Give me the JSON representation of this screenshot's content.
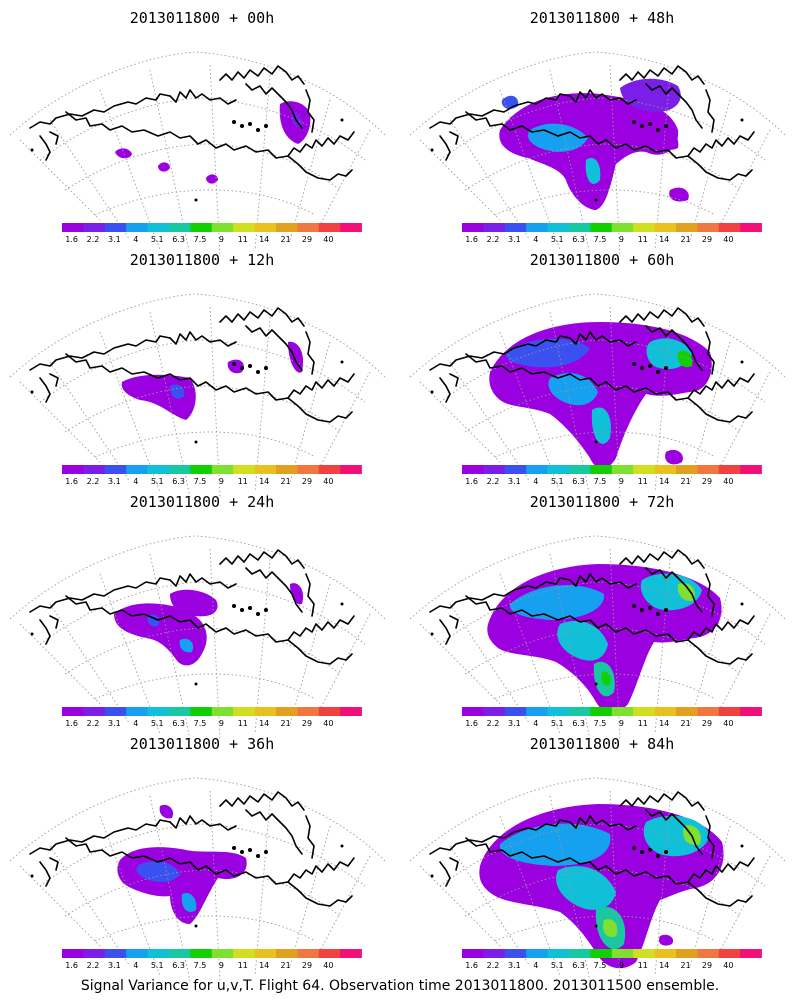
{
  "panels": [
    {
      "title": "2013011800 + 00h",
      "column": "left",
      "row": 0,
      "spread": 0
    },
    {
      "title": "2013011800 + 48h",
      "column": "right",
      "row": 0,
      "spread": 4
    },
    {
      "title": "2013011800 + 12h",
      "column": "left",
      "row": 1,
      "spread": 1
    },
    {
      "title": "2013011800 + 60h",
      "column": "right",
      "row": 1,
      "spread": 5
    },
    {
      "title": "2013011800 + 24h",
      "column": "left",
      "row": 2,
      "spread": 2
    },
    {
      "title": "2013011800 + 72h",
      "column": "right",
      "row": 2,
      "spread": 6
    },
    {
      "title": "2013011800 + 36h",
      "column": "left",
      "row": 3,
      "spread": 3
    },
    {
      "title": "2013011800 + 84h",
      "column": "right",
      "row": 3,
      "spread": 7
    }
  ],
  "colorbar": {
    "colors": [
      "#9a00e0",
      "#7a1ee8",
      "#3a50f0",
      "#16a0f0",
      "#10c0d8",
      "#18c8a0",
      "#10d000",
      "#80e030",
      "#d0e020",
      "#e8c020",
      "#e0a020",
      "#f07840",
      "#f04040",
      "#f01078"
    ],
    "labels": [
      "1.6",
      "2.2",
      "3.1",
      "4",
      "5.1",
      "6.3",
      "7.5",
      "9",
      "11",
      "14",
      "21",
      "29",
      "40"
    ]
  },
  "caption": "Signal Variance for u,v,T. Flight 64. Observation time 2013011800. 2013011500 ensemble."
}
